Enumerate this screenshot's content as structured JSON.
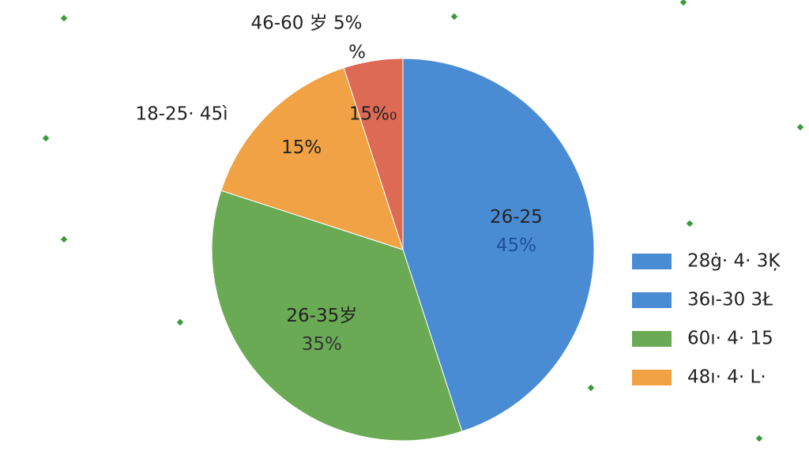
{
  "chart_data": {
    "type": "pie",
    "categories": [
      "26-25",
      "26-35岁",
      null,
      null
    ],
    "values": [
      45,
      35,
      15,
      5
    ],
    "value_labels": [
      "45%",
      "35%",
      "15%",
      null
    ],
    "colors": [
      "#4a8cd4",
      "#6aaa55",
      "#f0a244",
      "#dc6a55"
    ],
    "value_label_colors": [
      "#1c4fa0",
      "#333333",
      "#222222",
      "#222222"
    ],
    "annotations": [
      {
        "text": "46-60 岁 5%",
        "slice": 3
      },
      {
        "text": "%",
        "slice": 3
      },
      {
        "text": "18-25· 45ì",
        "slice": 2
      },
      {
        "text": "15%₀",
        "slice": 3
      }
    ],
    "legend": [
      {
        "label": "28ġ· 4· 3Ķ",
        "color": "#4a8cd4"
      },
      {
        "label": "36ı-30  3Ł",
        "color": "#4a8cd4"
      },
      {
        "label": "60ı· 4· 15",
        "color": "#6aaa55"
      },
      {
        "label": "48ı· 4· L·",
        "color": "#f0a244"
      }
    ]
  }
}
